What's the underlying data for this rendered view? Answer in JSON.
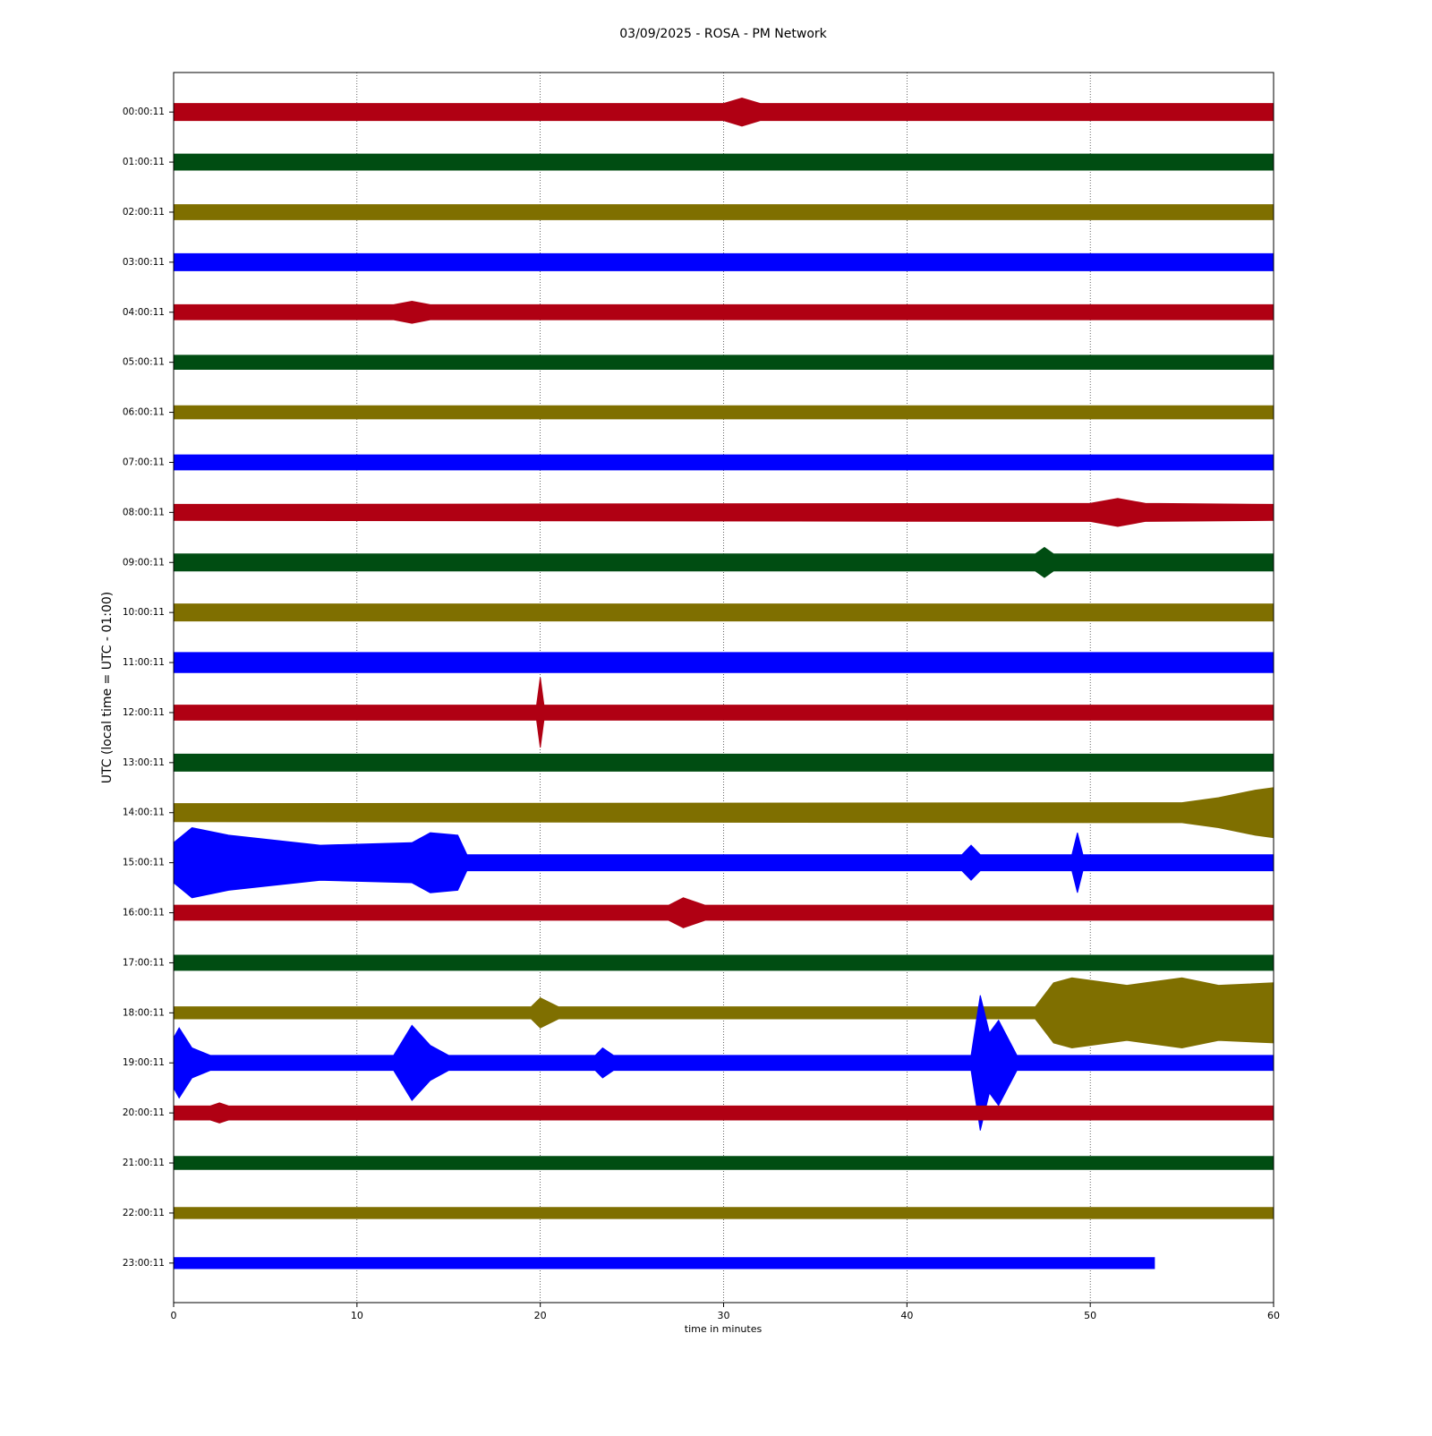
{
  "chart_data": {
    "type": "helicorder",
    "title": "03/09/2025 - ROSA - PM Network",
    "xlabel": "time in minutes",
    "ylabel": "UTC (local time = UTC - 01:00)",
    "xlim": [
      0,
      60
    ],
    "xticks": [
      0,
      10,
      20,
      30,
      40,
      50,
      60
    ],
    "grid": true,
    "series": [
      {
        "name": "00:00:11",
        "color": "#b00013",
        "x": [
          0,
          30,
          31,
          32,
          60
        ],
        "values": [
          0.17,
          0.17,
          0.28,
          0.17,
          0.17
        ]
      },
      {
        "name": "01:00:11",
        "color": "#004d12",
        "x": [
          0,
          60
        ],
        "values": [
          0.16,
          0.16
        ]
      },
      {
        "name": "02:00:11",
        "color": "#7f6f00",
        "x": [
          0,
          60
        ],
        "values": [
          0.15,
          0.15
        ]
      },
      {
        "name": "03:00:11",
        "color": "#0000ff",
        "x": [
          0,
          60
        ],
        "values": [
          0.17,
          0.17
        ]
      },
      {
        "name": "04:00:11",
        "color": "#b00013",
        "x": [
          0,
          12,
          13,
          14,
          60
        ],
        "values": [
          0.15,
          0.15,
          0.22,
          0.15,
          0.15
        ]
      },
      {
        "name": "05:00:11",
        "color": "#004d12",
        "x": [
          0,
          60
        ],
        "values": [
          0.14,
          0.14
        ]
      },
      {
        "name": "06:00:11",
        "color": "#7f6f00",
        "x": [
          0,
          60
        ],
        "values": [
          0.13,
          0.13
        ]
      },
      {
        "name": "07:00:11",
        "color": "#0000ff",
        "x": [
          0,
          60
        ],
        "values": [
          0.15,
          0.15
        ]
      },
      {
        "name": "08:00:11",
        "color": "#b00013",
        "x": [
          0,
          50,
          51.5,
          53,
          60
        ],
        "values": [
          0.16,
          0.18,
          0.28,
          0.18,
          0.16
        ]
      },
      {
        "name": "09:00:11",
        "color": "#004d12",
        "x": [
          0,
          47,
          47.5,
          48,
          60
        ],
        "values": [
          0.17,
          0.17,
          0.3,
          0.17,
          0.17
        ]
      },
      {
        "name": "10:00:11",
        "color": "#7f6f00",
        "x": [
          0,
          60
        ],
        "values": [
          0.17,
          0.17
        ]
      },
      {
        "name": "11:00:11",
        "color": "#0000ff",
        "x": [
          0,
          60
        ],
        "values": [
          0.2,
          0.2
        ]
      },
      {
        "name": "12:00:11",
        "color": "#b00013",
        "x": [
          0,
          19.8,
          20,
          20.2,
          60
        ],
        "values": [
          0.15,
          0.15,
          0.7,
          0.15,
          0.15
        ]
      },
      {
        "name": "13:00:11",
        "color": "#004d12",
        "x": [
          0,
          60
        ],
        "values": [
          0.17,
          0.17
        ]
      },
      {
        "name": "14:00:11",
        "color": "#7f6f00",
        "x": [
          0,
          55,
          57,
          59,
          60
        ],
        "values": [
          0.18,
          0.2,
          0.3,
          0.45,
          0.5
        ]
      },
      {
        "name": "15:00:11",
        "color": "#0000ff",
        "x": [
          0,
          1,
          3,
          8,
          13,
          14,
          15.5,
          16,
          43,
          43.5,
          44,
          49,
          49.3,
          49.6,
          60
        ],
        "values": [
          0.4,
          0.7,
          0.55,
          0.35,
          0.4,
          0.6,
          0.55,
          0.16,
          0.16,
          0.35,
          0.16,
          0.16,
          0.6,
          0.16,
          0.16
        ]
      },
      {
        "name": "16:00:11",
        "color": "#b00013",
        "x": [
          0,
          27,
          27.8,
          29,
          60
        ],
        "values": [
          0.15,
          0.15,
          0.3,
          0.15,
          0.15
        ]
      },
      {
        "name": "17:00:11",
        "color": "#004d12",
        "x": [
          0,
          60
        ],
        "values": [
          0.15,
          0.15
        ]
      },
      {
        "name": "18:00:11",
        "color": "#7f6f00",
        "x": [
          0,
          19.5,
          20,
          21,
          47,
          48,
          49,
          52,
          55,
          57,
          60
        ],
        "values": [
          0.12,
          0.12,
          0.3,
          0.12,
          0.12,
          0.6,
          0.7,
          0.55,
          0.7,
          0.55,
          0.6
        ]
      },
      {
        "name": "19:00:11",
        "color": "#0000ff",
        "x": [
          0,
          0.3,
          1,
          2,
          12,
          13,
          14,
          15,
          23,
          23.4,
          24,
          43.5,
          44,
          44.5,
          45,
          46,
          60
        ],
        "values": [
          0.5,
          0.7,
          0.3,
          0.15,
          0.15,
          0.75,
          0.35,
          0.15,
          0.15,
          0.3,
          0.15,
          0.15,
          1.35,
          0.6,
          0.85,
          0.15,
          0.15
        ]
      },
      {
        "name": "20:00:11",
        "color": "#b00013",
        "x": [
          0,
          2,
          2.5,
          3,
          60
        ],
        "values": [
          0.14,
          0.14,
          0.2,
          0.14,
          0.14
        ]
      },
      {
        "name": "21:00:11",
        "color": "#004d12",
        "x": [
          0,
          60
        ],
        "values": [
          0.13,
          0.13
        ]
      },
      {
        "name": "22:00:11",
        "color": "#7f6f00",
        "x": [
          0,
          60
        ],
        "values": [
          0.11,
          0.11
        ]
      },
      {
        "name": "23:00:11",
        "color": "#0000ff",
        "x": [
          0,
          53.5
        ],
        "values": [
          0.11,
          0.11
        ]
      }
    ]
  }
}
